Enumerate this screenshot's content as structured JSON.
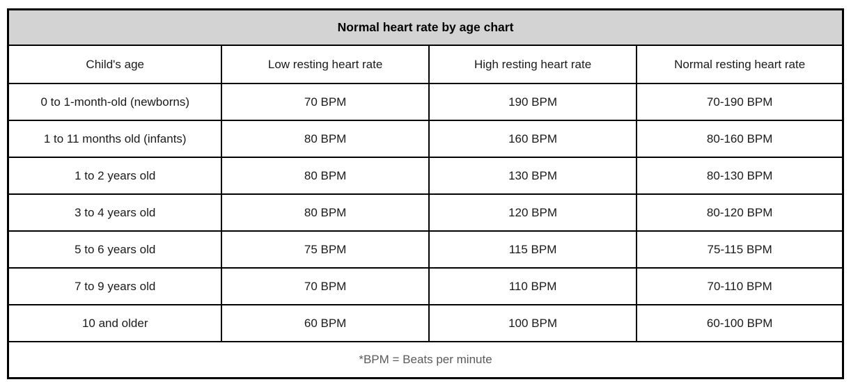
{
  "table": {
    "title": "Normal heart rate by age chart",
    "columns": [
      "Child's age",
      "Low resting heart rate",
      "High resting heart rate",
      "Normal resting heart rate"
    ],
    "rows": [
      [
        "0 to 1-month-old (newborns)",
        "70 BPM",
        "190 BPM",
        "70-190 BPM"
      ],
      [
        "1 to 11 months old (infants)",
        "80 BPM",
        "160 BPM",
        "80-160 BPM"
      ],
      [
        "1 to 2 years old",
        "80 BPM",
        "130 BPM",
        "80-130 BPM"
      ],
      [
        "3 to 4 years old",
        "80 BPM",
        "120 BPM",
        "80-120 BPM"
      ],
      [
        "5 to 6 years old",
        "75 BPM",
        "115 BPM",
        "75-115 BPM"
      ],
      [
        "7 to 9 years old",
        "70 BPM",
        "110 BPM",
        "70-110 BPM"
      ],
      [
        "10 and older",
        "60 BPM",
        "100 BPM",
        "60-100 BPM"
      ]
    ],
    "footnote": "*BPM = Beats per minute"
  },
  "chart_data": {
    "type": "table",
    "title": "Normal heart rate by age chart",
    "columns": [
      "Child's age",
      "Low resting heart rate",
      "High resting heart rate",
      "Normal resting heart rate"
    ],
    "rows": [
      [
        "0 to 1-month-old (newborns)",
        "70 BPM",
        "190 BPM",
        "70-190 BPM"
      ],
      [
        "1 to 11 months old (infants)",
        "80 BPM",
        "160 BPM",
        "80-160 BPM"
      ],
      [
        "1 to 2 years old",
        "80 BPM",
        "130 BPM",
        "80-130 BPM"
      ],
      [
        "3 to 4 years old",
        "80 BPM",
        "120 BPM",
        "80-120 BPM"
      ],
      [
        "5 to 6 years old",
        "75 BPM",
        "115 BPM",
        "75-115 BPM"
      ],
      [
        "7 to 9 years old",
        "70 BPM",
        "110 BPM",
        "70-110 BPM"
      ],
      [
        "10 and older",
        "60 BPM",
        "100 BPM",
        "60-100 BPM"
      ]
    ],
    "low_bpm_values": [
      70,
      80,
      80,
      80,
      75,
      70,
      60
    ],
    "high_bpm_values": [
      190,
      160,
      130,
      120,
      115,
      110,
      100
    ],
    "footnote": "*BPM = Beats per minute"
  },
  "colors": {
    "title_background": "#d3d3d3",
    "border": "#000000",
    "body_text": "#1a1a1a",
    "footnote_text": "#5a5a5a"
  }
}
